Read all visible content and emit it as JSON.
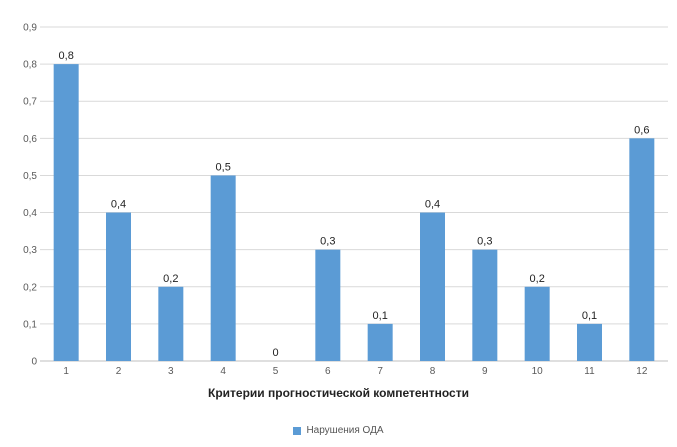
{
  "chart_data": {
    "type": "bar",
    "categories": [
      "1",
      "2",
      "3",
      "4",
      "5",
      "6",
      "7",
      "8",
      "9",
      "10",
      "11",
      "12"
    ],
    "series": [
      {
        "name": "Нарушения ОДА",
        "values": [
          0.8,
          0.4,
          0.2,
          0.5,
          0,
          0.3,
          0.1,
          0.4,
          0.3,
          0.2,
          0.1,
          0.6
        ],
        "value_labels": [
          "0,8",
          "0,4",
          "0,2",
          "0,5",
          "0",
          "0,3",
          "0,1",
          "0,4",
          "0,3",
          "0,2",
          "0,1",
          "0,6"
        ],
        "color": "#5b9bd5"
      }
    ],
    "y_ticks": [
      {
        "value": 0,
        "label": "0"
      },
      {
        "value": 0.1,
        "label": "0,1"
      },
      {
        "value": 0.2,
        "label": "0,2"
      },
      {
        "value": 0.3,
        "label": "0,3"
      },
      {
        "value": 0.4,
        "label": "0,4"
      },
      {
        "value": 0.5,
        "label": "0,5"
      },
      {
        "value": 0.6,
        "label": "0,6"
      },
      {
        "value": 0.7,
        "label": "0,7"
      },
      {
        "value": 0.8,
        "label": "0,8"
      },
      {
        "value": 0.9,
        "label": "0,9"
      }
    ],
    "ylim": [
      0,
      0.9
    ],
    "xlabel": "Критерии прогностической компетентности",
    "ylabel": "",
    "grid": true,
    "legend_position": "bottom"
  },
  "colors": {
    "bar": "#5b9bd5",
    "grid": "#d9d9d9",
    "tick_text": "#595959",
    "label_text": "#222222"
  }
}
